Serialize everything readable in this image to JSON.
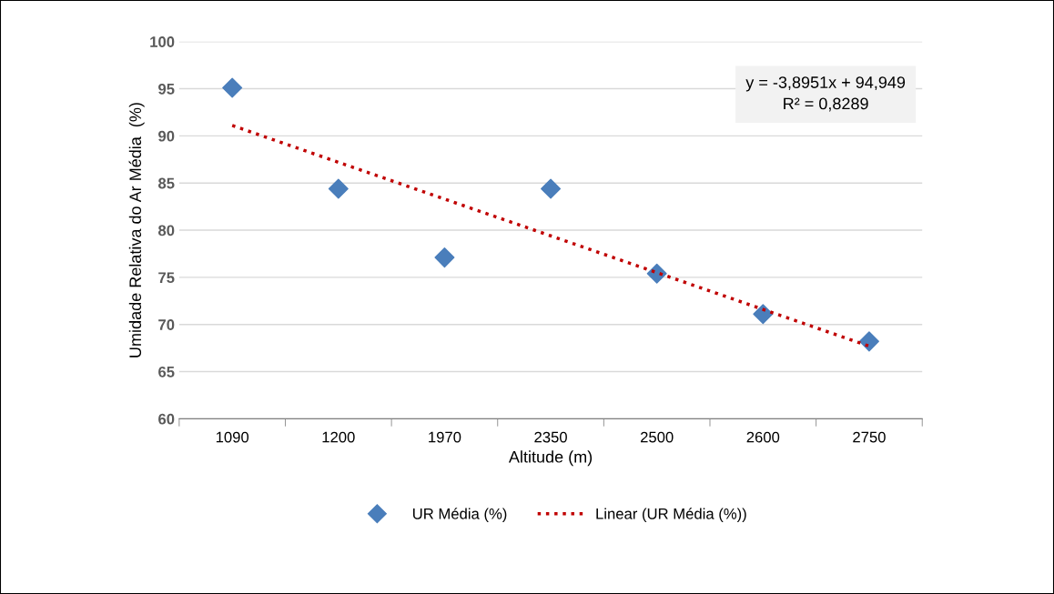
{
  "chart_data": {
    "type": "scatter",
    "xlabel": "Altitude (m)",
    "ylabel": "Umidade Relativa do Ar Média  (%)",
    "categories": [
      "1090",
      "1200",
      "1970",
      "2350",
      "2500",
      "2600",
      "2750"
    ],
    "series": [
      {
        "name": "UR Média (%)",
        "color": "#4a7ebb",
        "marker": "diamond",
        "values": [
          95.1,
          84.4,
          77.1,
          84.4,
          75.4,
          71.1,
          68.2
        ]
      },
      {
        "name": "Linear (UR Média (%))",
        "type": "line",
        "color": "#c00000",
        "line_style": "dotted",
        "marker": "none",
        "values": [
          91.1,
          87.2,
          83.3,
          79.4,
          75.5,
          71.6,
          67.7
        ]
      }
    ],
    "ylim": [
      60,
      100
    ],
    "yticks": [
      60,
      65,
      70,
      75,
      80,
      85,
      90,
      95,
      100
    ],
    "grid": "y",
    "legend": "bottom",
    "annotations": [
      "y = -3,8951x + 94,949\nR² = 0,8289"
    ]
  }
}
